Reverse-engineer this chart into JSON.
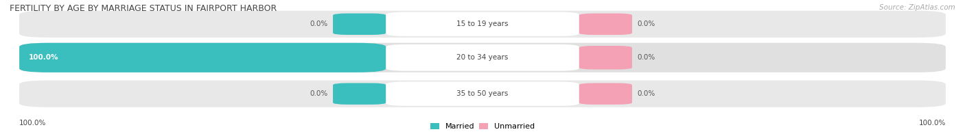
{
  "title": "FERTILITY BY AGE BY MARRIAGE STATUS IN FAIRPORT HARBOR",
  "source": "Source: ZipAtlas.com",
  "categories": [
    "15 to 19 years",
    "20 to 34 years",
    "35 to 50 years"
  ],
  "married_values": [
    0.0,
    100.0,
    0.0
  ],
  "unmarried_values": [
    0.0,
    0.0,
    0.0
  ],
  "married_color": "#3bbfbe",
  "unmarried_color": "#f4a0b5",
  "bar_bg_color": "#e4e4e4",
  "bar_bg_color2": "#ececec",
  "title_color": "#555555",
  "source_color": "#999999",
  "value_color": "#555555",
  "label_color": "#444444",
  "bottom_left_label": "100.0%",
  "bottom_right_label": "100.0%",
  "figwidth": 14.06,
  "figheight": 1.96
}
